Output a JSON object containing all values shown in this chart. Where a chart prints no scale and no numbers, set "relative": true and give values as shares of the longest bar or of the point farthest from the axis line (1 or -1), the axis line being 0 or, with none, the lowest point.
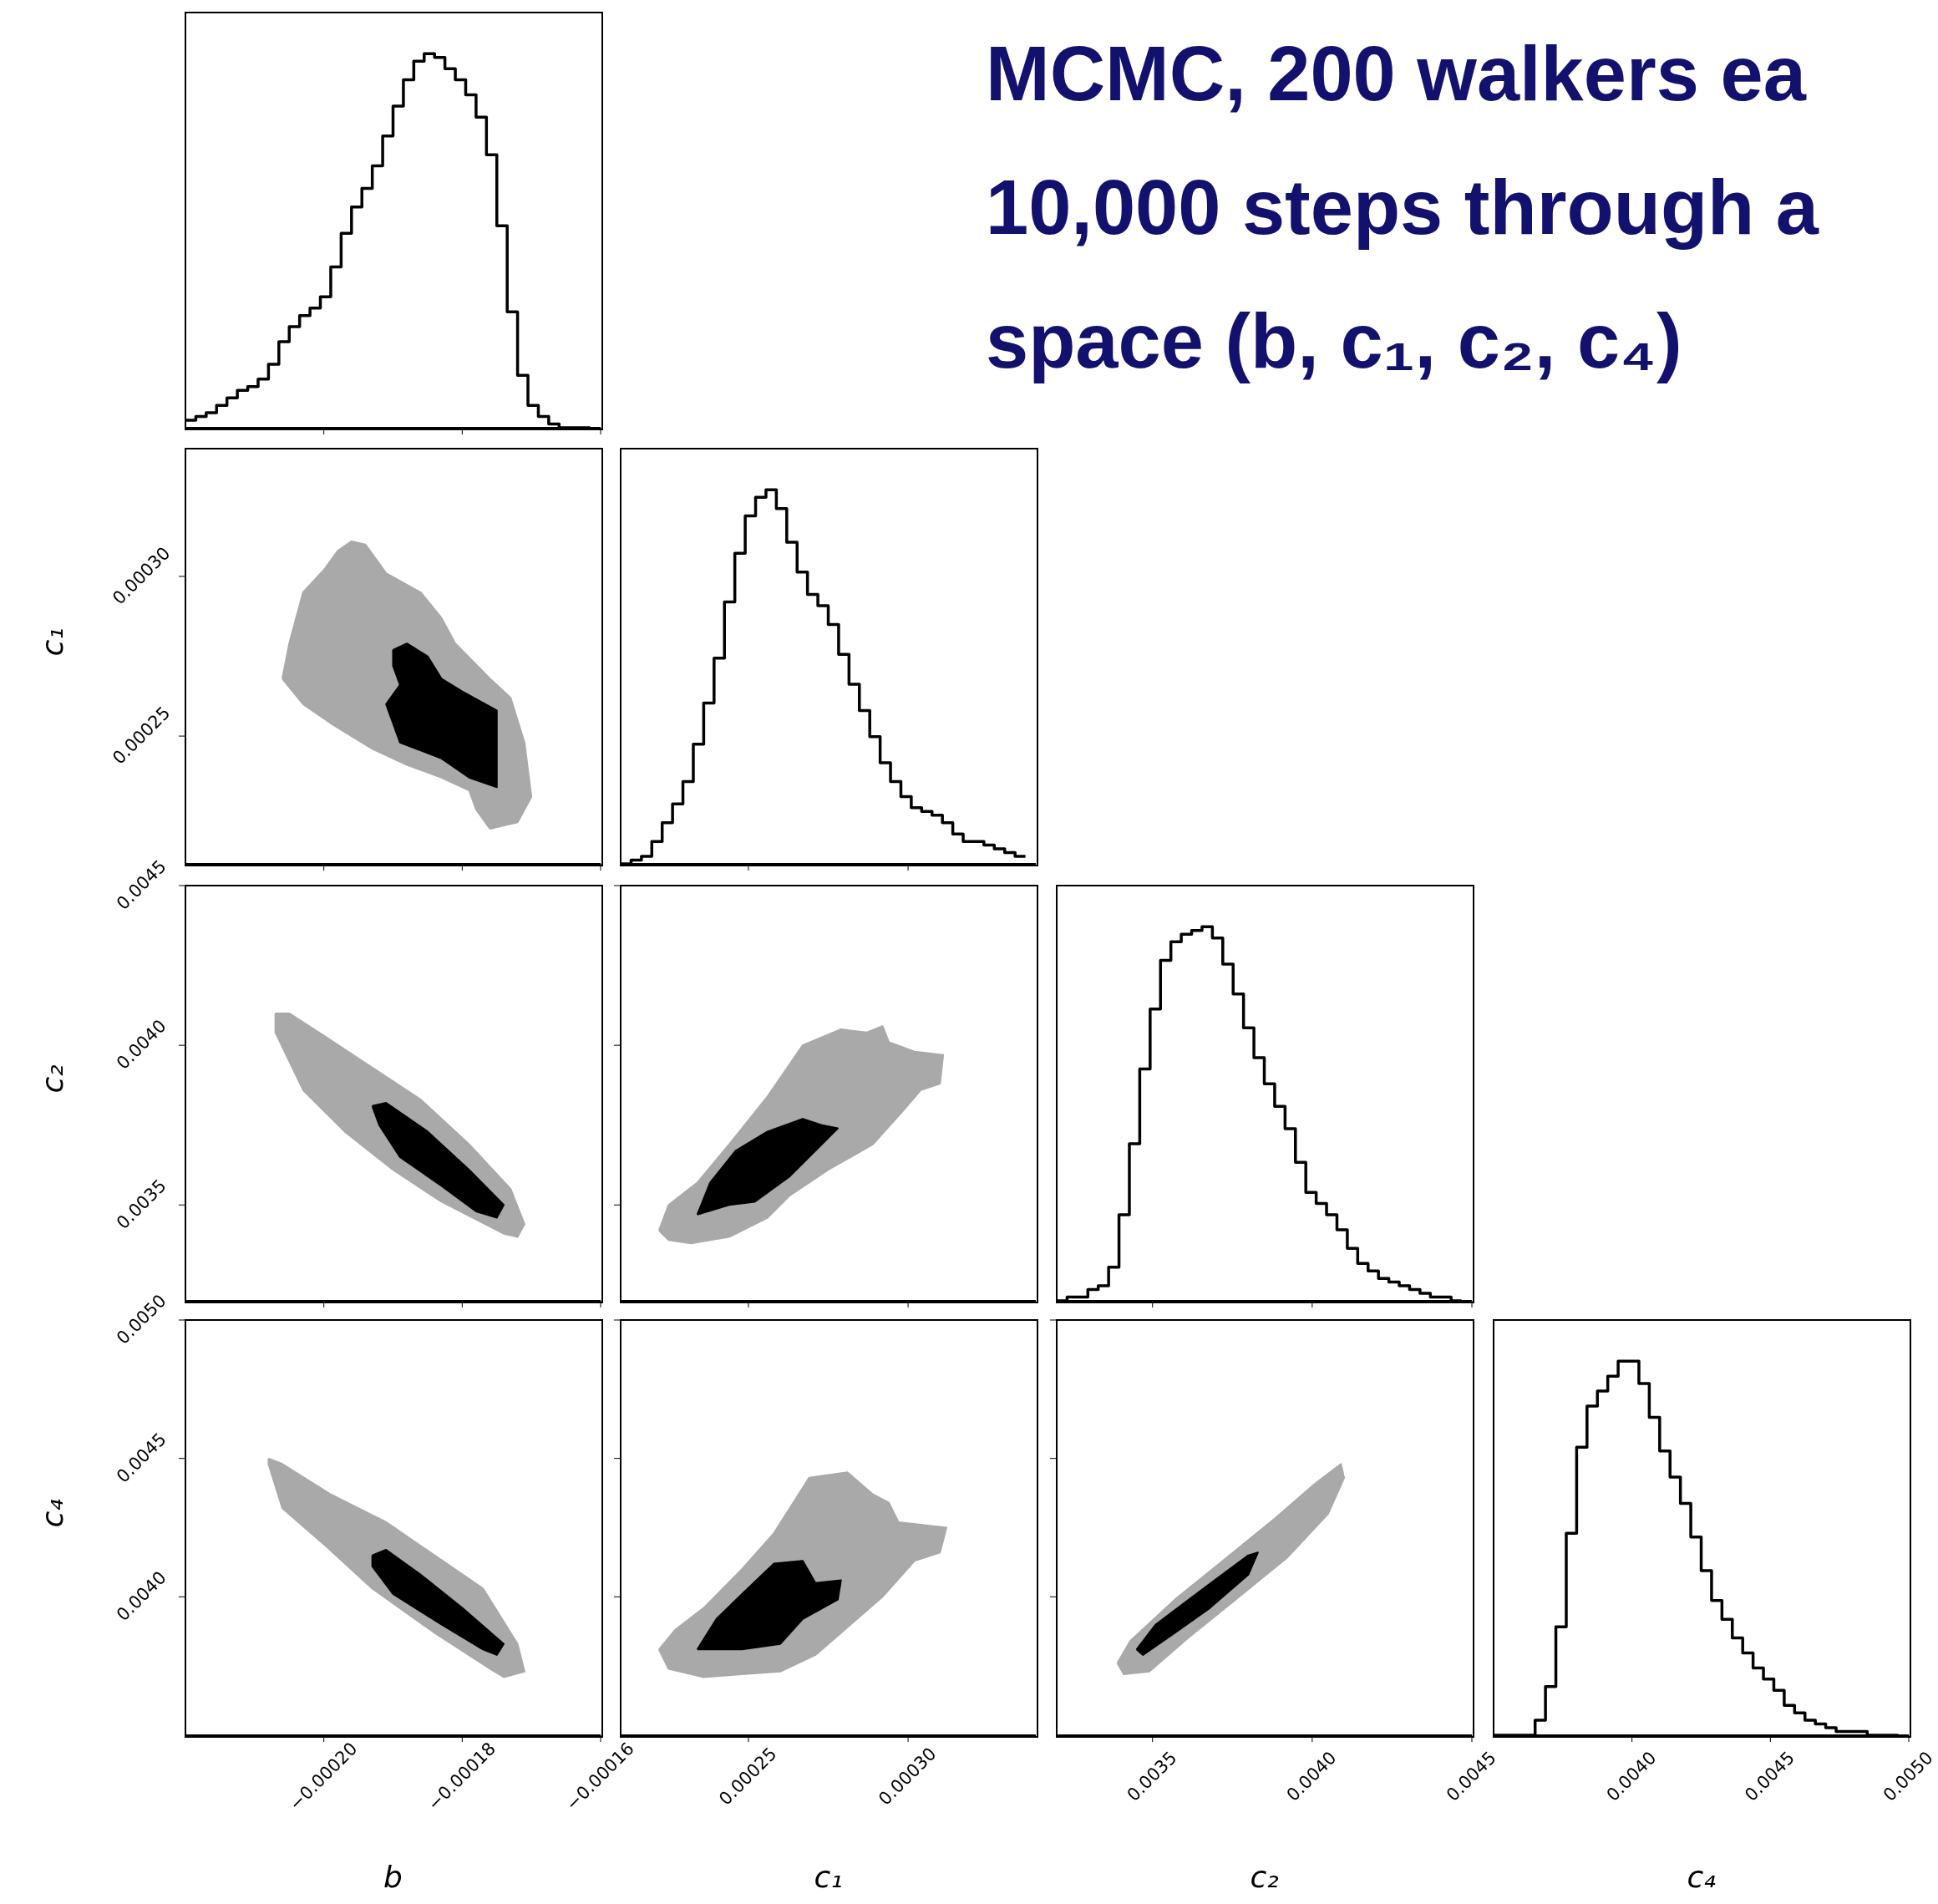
{
  "chart_data": [
    {
      "type": "step",
      "relative": true,
      "color": "#000000",
      "tick_labels": false,
      "xlim": [
        -0.00022,
        -0.00016
      ],
      "xticks": [
        {
          "value": -0.0002,
          "label": null
        },
        {
          "value": -0.00018,
          "label": null
        },
        {
          "value": -0.00016,
          "label": null
        }
      ],
      "x": [
        -0.00022,
        -0.0002185,
        -0.000217,
        -0.0002155,
        -0.000214,
        -0.0002125,
        -0.000211,
        -0.0002095,
        -0.000208,
        -0.0002065,
        -0.000205,
        -0.0002035,
        -0.000202,
        -0.0002005,
        -0.000199,
        -0.0001975,
        -0.000196,
        -0.0001945,
        -0.000193,
        -0.0001915,
        -0.00019,
        -0.0001885,
        -0.000187,
        -0.0001855,
        -0.000184,
        -0.0001825,
        -0.000181,
        -0.0001795,
        -0.000178,
        -0.0001765,
        -0.000175,
        -0.0001735,
        -0.000172,
        -0.0001705,
        -0.000169,
        -0.0001675,
        -0.000166,
        -0.0001645,
        -0.000163,
        -0.0001615
      ],
      "values": [
        0.02,
        0.03,
        0.04,
        0.06,
        0.08,
        0.1,
        0.11,
        0.13,
        0.17,
        0.23,
        0.27,
        0.3,
        0.32,
        0.35,
        0.43,
        0.52,
        0.59,
        0.64,
        0.7,
        0.78,
        0.86,
        0.93,
        0.98,
        1,
        0.99,
        0.96,
        0.93,
        0.89,
        0.83,
        0.73,
        0.54,
        0.31,
        0.14,
        0.06,
        0.03,
        0.01,
        0,
        0,
        0,
        0
      ]
    },
    {
      "type": "other",
      "title": "MCMC, 200 walkers ea\n10,000 steps through a\nspace (b, c₁, c₂, c₄)"
    },
    {
      "type": "area",
      "tick_labels": "y",
      "ylabel": "c₁",
      "xlim": [
        -0.00022,
        -0.00016
      ],
      "xticks": [
        {
          "value": -0.0002,
          "label": null
        },
        {
          "value": -0.00018,
          "label": null
        },
        {
          "value": -0.00016,
          "label": null
        }
      ],
      "ylim": [
        0.00021,
        0.00034
      ],
      "yticks": [
        {
          "value": 0.00025,
          "label": "0.00025"
        },
        {
          "value": 0.0003,
          "label": "0.00030"
        }
      ],
      "series": [
        {
          "color": "#a9a9a9",
          "x": [
            -0.000206,
            -0.000205,
            -0.000204,
            -0.000203,
            -0.0002,
            -0.000198,
            -0.000196,
            -0.000194,
            -0.000191,
            -0.000186,
            -0.000183,
            -0.000181,
            -0.000176,
            -0.000173,
            -0.000171,
            -0.00017,
            -0.000172,
            -0.000176,
            -0.000178,
            -0.000179,
            -0.000183,
            -0.000188,
            -0.000193,
            -0.000199,
            -0.000203,
            -0.000206
          ],
          "values": [
            0.000268,
            0.000279,
            0.000287,
            0.000295,
            0.000302,
            0.000308,
            0.000311,
            0.00031,
            0.000301,
            0.000295,
            0.000287,
            0.000279,
            0.000268,
            0.000262,
            0.000248,
            0.000231,
            0.000223,
            0.000221,
            0.000227,
            0.000233,
            0.000237,
            0.000241,
            0.000246,
            0.000254,
            0.00026,
            0.000268
          ]
        },
        {
          "color": "#000000",
          "x": [
            -0.00019,
            -0.000188,
            -0.000185,
            -0.000183,
            -0.00018,
            -0.000175,
            -0.000175,
            -0.000175,
            -0.000179,
            -0.000183,
            -0.000189,
            -0.000191,
            -0.000189,
            -0.00019,
            -0.00019
          ],
          "values": [
            0.000277,
            0.000279,
            0.000275,
            0.000268,
            0.000264,
            0.000258,
            0.000248,
            0.000234,
            0.000237,
            0.000243,
            0.000248,
            0.00026,
            0.000266,
            0.000272,
            0.000277
          ]
        }
      ]
    },
    {
      "type": "step",
      "relative": true,
      "color": "#000000",
      "tick_labels": false,
      "xlim": [
        0.00021,
        0.00034
      ],
      "xticks": [
        {
          "value": 0.00025,
          "label": null
        },
        {
          "value": 0.0003,
          "label": null
        }
      ],
      "x": [
        0.00021,
        0.00021325,
        0.0002165,
        0.00021975,
        0.000223,
        0.00022625,
        0.0002295,
        0.00023275,
        0.000236,
        0.00023925,
        0.0002425,
        0.00024575,
        0.000249,
        0.00025225,
        0.0002555,
        0.00025875,
        0.000262,
        0.00026525,
        0.0002685,
        0.00027175,
        0.000275,
        0.00027825,
        0.0002815,
        0.00028475,
        0.000288,
        0.00029125,
        0.0002945,
        0.00029775,
        0.000301,
        0.00030425,
        0.0003075,
        0.00031075,
        0.000314,
        0.00031725,
        0.0003205,
        0.00032375,
        0.000327,
        0.00033025,
        0.0003335,
        0.00033675
      ],
      "values": [
        0,
        0.01,
        0.02,
        0.06,
        0.11,
        0.16,
        0.22,
        0.32,
        0.43,
        0.55,
        0.7,
        0.83,
        0.93,
        0.98,
        1,
        0.95,
        0.86,
        0.78,
        0.72,
        0.69,
        0.64,
        0.56,
        0.48,
        0.41,
        0.34,
        0.27,
        0.22,
        0.18,
        0.15,
        0.14,
        0.13,
        0.11,
        0.08,
        0.06,
        0.06,
        0.05,
        0.04,
        0.03,
        0.02,
        0.02
      ]
    },
    {
      "type": "area",
      "tick_labels": "y",
      "ylabel": "c₂",
      "xlim": [
        -0.00022,
        -0.00016
      ],
      "xticks": [
        {
          "value": -0.0002,
          "label": null
        },
        {
          "value": -0.00018,
          "label": null
        },
        {
          "value": -0.00016,
          "label": null
        }
      ],
      "ylim": [
        0.0032,
        0.0045
      ],
      "yticks": [
        {
          "value": 0.0035,
          "label": "0.0035"
        },
        {
          "value": 0.004,
          "label": "0.0040"
        },
        {
          "value": 0.0045,
          "label": "0.0045"
        }
      ],
      "series": [
        {
          "color": "#a9a9a9",
          "x": [
            -0.000207,
            -0.000205,
            -0.0002,
            -0.000193,
            -0.000186,
            -0.000179,
            -0.000173,
            -0.000171,
            -0.000172,
            -0.000174,
            -0.000183,
            -0.00019,
            -0.000197,
            -0.000203,
            -0.000207,
            -0.000207
          ],
          "values": [
            0.0041,
            0.0041,
            0.00403,
            0.00393,
            0.00383,
            0.00369,
            0.00355,
            0.00344,
            0.0034,
            0.00341,
            0.00351,
            0.00361,
            0.00373,
            0.00386,
            0.00404,
            0.0041
          ]
        },
        {
          "color": "#000000",
          "x": [
            -0.000193,
            -0.000191,
            -0.000185,
            -0.000179,
            -0.000174,
            -0.000175,
            -0.000178,
            -0.000183,
            -0.000189,
            -0.000192,
            -0.000193
          ],
          "values": [
            0.00381,
            0.00382,
            0.00373,
            0.00361,
            0.0035,
            0.00346,
            0.00348,
            0.00356,
            0.00365,
            0.00375,
            0.00381
          ]
        }
      ]
    },
    {
      "type": "area",
      "tick_labels": false,
      "xlim": [
        0.00021,
        0.00034
      ],
      "xticks": [
        {
          "value": 0.00025,
          "label": null
        },
        {
          "value": 0.0003,
          "label": null
        }
      ],
      "ylim": [
        0.0032,
        0.0045
      ],
      "yticks": [
        {
          "value": 0.0035,
          "label": null
        },
        {
          "value": 0.004,
          "label": null
        },
        {
          "value": 0.0045,
          "label": null
        }
      ],
      "series": [
        {
          "color": "#a9a9a9",
          "x": [
            0.000222,
            0.000225,
            0.000234,
            0.000244,
            0.000256,
            0.000267,
            0.000279,
            0.000287,
            0.000292,
            0.000294,
            0.000302,
            0.000311,
            0.00031,
            0.000304,
            0.000298,
            0.000289,
            0.000275,
            0.000263,
            0.000256,
            0.000244,
            0.000232,
            0.000225,
            0.000222
          ],
          "values": [
            0.00342,
            0.0035,
            0.00357,
            0.00369,
            0.00384,
            0.004,
            0.00405,
            0.00404,
            0.00406,
            0.00401,
            0.00398,
            0.00397,
            0.00388,
            0.00386,
            0.00379,
            0.00369,
            0.00361,
            0.00353,
            0.00346,
            0.0034,
            0.00338,
            0.00339,
            0.00342
          ]
        },
        {
          "color": "#000000",
          "x": [
            0.000234,
            0.000238,
            0.000246,
            0.000256,
            0.000267,
            0.000273,
            0.000278,
            0.000271,
            0.000263,
            0.000252,
            0.000244,
            0.000234
          ],
          "values": [
            0.00347,
            0.00357,
            0.00367,
            0.00373,
            0.00377,
            0.00375,
            0.00374,
            0.00367,
            0.00359,
            0.00351,
            0.0035,
            0.00347
          ]
        }
      ]
    },
    {
      "type": "step",
      "relative": true,
      "color": "#000000",
      "tick_labels": false,
      "xlim": [
        0.0032,
        0.0045
      ],
      "xticks": [
        {
          "value": 0.0035,
          "label": null
        },
        {
          "value": 0.004,
          "label": null
        },
        {
          "value": 0.0045,
          "label": null
        }
      ],
      "x": [
        0.0032,
        0.0032325,
        0.003265,
        0.0032975,
        0.00333,
        0.0033625,
        0.003395,
        0.0034275,
        0.00346,
        0.0034925,
        0.003525,
        0.0035575,
        0.00359,
        0.0036225,
        0.003655,
        0.0036875,
        0.00372,
        0.0037525,
        0.003785,
        0.0038175,
        0.00385,
        0.0038825,
        0.003915,
        0.0039475,
        0.00398,
        0.0040125,
        0.004045,
        0.0040775,
        0.00411,
        0.0041425,
        0.004175,
        0.0042075,
        0.00424,
        0.0042725,
        0.004305,
        0.0043375,
        0.00437,
        0.0044025,
        0.004435,
        0.0044675
      ],
      "values": [
        0,
        0.01,
        0.01,
        0.03,
        0.04,
        0.09,
        0.23,
        0.42,
        0.62,
        0.78,
        0.91,
        0.96,
        0.98,
        0.99,
        1,
        0.97,
        0.9,
        0.82,
        0.73,
        0.65,
        0.58,
        0.52,
        0.46,
        0.37,
        0.29,
        0.26,
        0.23,
        0.19,
        0.14,
        0.1,
        0.08,
        0.06,
        0.05,
        0.04,
        0.03,
        0.02,
        0.01,
        0.01,
        0,
        0
      ]
    },
    {
      "type": "area",
      "xlabel": "b",
      "ylabel": "c₄",
      "xlim": [
        -0.00022,
        -0.00016
      ],
      "xticks": [
        {
          "value": -0.0002,
          "label": "−0.00020"
        },
        {
          "value": -0.00018,
          "label": "−0.00018"
        },
        {
          "value": -0.00016,
          "label": "−0.00016"
        }
      ],
      "ylim": [
        0.0035,
        0.005
      ],
      "yticks": [
        {
          "value": 0.004,
          "label": "0.0040"
        },
        {
          "value": 0.0045,
          "label": "0.0045"
        },
        {
          "value": 0.005,
          "label": "0.0050"
        }
      ],
      "series": [
        {
          "color": "#a9a9a9",
          "x": [
            -0.000208,
            -0.000206,
            -0.000199,
            -0.000191,
            -0.000184,
            -0.000177,
            -0.000172,
            -0.000171,
            -0.000174,
            -0.000176,
            -0.000184,
            -0.000193,
            -0.0002,
            -0.000206,
            -0.000208,
            -0.000208
          ],
          "values": [
            0.0045,
            0.00448,
            0.00437,
            0.00427,
            0.00415,
            0.00403,
            0.00383,
            0.00373,
            0.00371,
            0.00374,
            0.00387,
            0.00403,
            0.00419,
            0.00432,
            0.00448,
            0.0045
          ]
        },
        {
          "color": "#000000",
          "x": [
            -0.000193,
            -0.000191,
            -0.000186,
            -0.00018,
            -0.000174,
            -0.000175,
            -0.000177,
            -0.000183,
            -0.00019,
            -0.000193,
            -0.000193
          ],
          "values": [
            0.00415,
            0.00417,
            0.00408,
            0.00396,
            0.00383,
            0.00379,
            0.00381,
            0.0039,
            0.00401,
            0.00411,
            0.00415
          ]
        }
      ]
    },
    {
      "type": "area",
      "tick_labels": "x",
      "xlabel": "c₁",
      "xlim": [
        0.00021,
        0.00034
      ],
      "xticks": [
        {
          "value": 0.00025,
          "label": "0.00025"
        },
        {
          "value": 0.0003,
          "label": "0.00030"
        }
      ],
      "ylim": [
        0.0035,
        0.005
      ],
      "yticks": [
        {
          "value": 0.004,
          "label": null
        },
        {
          "value": 0.0045,
          "label": null
        },
        {
          "value": 0.005,
          "label": null
        }
      ],
      "series": [
        {
          "color": "#a9a9a9",
          "x": [
            0.000222,
            0.000227,
            0.000236,
            0.000248,
            0.000258,
            0.000269,
            0.000281,
            0.000289,
            0.000294,
            0.000297,
            0.000312,
            0.00031,
            0.000302,
            0.000292,
            0.000279,
            0.000271,
            0.00026,
            0.000248,
            0.000236,
            0.000225,
            0.000222
          ],
          "values": [
            0.00381,
            0.00388,
            0.00396,
            0.0041,
            0.00423,
            0.00443,
            0.00445,
            0.00437,
            0.00434,
            0.00427,
            0.00425,
            0.00416,
            0.00413,
            0.004,
            0.00387,
            0.00379,
            0.00373,
            0.00372,
            0.00371,
            0.00374,
            0.00381
          ]
        },
        {
          "color": "#000000",
          "x": [
            0.000234,
            0.00024,
            0.000248,
            0.000258,
            0.000267,
            0.000271,
            0.000279,
            0.000278,
            0.000267,
            0.00026,
            0.000248,
            0.000234
          ],
          "values": [
            0.00381,
            0.00392,
            0.00401,
            0.00412,
            0.00413,
            0.00405,
            0.00406,
            0.00399,
            0.00392,
            0.00383,
            0.00381,
            0.00381
          ]
        }
      ]
    },
    {
      "type": "area",
      "tick_labels": "x",
      "xlabel": "c₂",
      "xlim": [
        0.0032,
        0.0045
      ],
      "xticks": [
        {
          "value": 0.0035,
          "label": "0.0035"
        },
        {
          "value": 0.004,
          "label": "0.0040"
        },
        {
          "value": 0.0045,
          "label": "0.0045"
        }
      ],
      "ylim": [
        0.0035,
        0.005
      ],
      "yticks": [
        {
          "value": 0.004,
          "label": null
        },
        {
          "value": 0.0045,
          "label": null
        },
        {
          "value": 0.005,
          "label": null
        }
      ],
      "series": [
        {
          "color": "#a9a9a9",
          "x": [
            0.00339,
            0.00343,
            0.00357,
            0.00372,
            0.00388,
            0.00401,
            0.00409,
            0.0041,
            0.00405,
            0.00392,
            0.00376,
            0.00361,
            0.00349,
            0.00341,
            0.00339
          ],
          "values": [
            0.00376,
            0.00384,
            0.00399,
            0.00413,
            0.00428,
            0.00441,
            0.00448,
            0.00443,
            0.0043,
            0.00414,
            0.00399,
            0.00385,
            0.00373,
            0.00372,
            0.00376
          ]
        },
        {
          "color": "#000000",
          "x": [
            0.00345,
            0.00351,
            0.00366,
            0.0038,
            0.00383,
            0.0038,
            0.00368,
            0.00357,
            0.00347,
            0.00345
          ],
          "values": [
            0.00381,
            0.0039,
            0.00403,
            0.00415,
            0.00416,
            0.00408,
            0.00396,
            0.00387,
            0.00379,
            0.00381
          ]
        }
      ]
    },
    {
      "type": "step",
      "relative": true,
      "color": "#000000",
      "tick_labels": "x",
      "xlabel": "c₄",
      "xlim": [
        0.0035,
        0.005
      ],
      "xticks": [
        {
          "value": 0.004,
          "label": "0.0040"
        },
        {
          "value": 0.0045,
          "label": "0.0045"
        },
        {
          "value": 0.005,
          "label": "0.0050"
        }
      ],
      "x": [
        0.0035,
        0.0035375,
        0.003575,
        0.0036125,
        0.00365,
        0.0036875,
        0.003725,
        0.0037625,
        0.0038,
        0.0038375,
        0.003875,
        0.0039125,
        0.00395,
        0.0039875,
        0.004025,
        0.0040625,
        0.0041,
        0.0041375,
        0.004175,
        0.0042125,
        0.00425,
        0.0042875,
        0.004325,
        0.0043625,
        0.0044,
        0.0044375,
        0.004475,
        0.0045125,
        0.00455,
        0.0045875,
        0.004625,
        0.0046625,
        0.0047,
        0.0047375,
        0.004775,
        0.0048125,
        0.00485,
        0.0048875,
        0.004925,
        0.0049625
      ],
      "values": [
        0,
        0,
        0,
        0,
        0.04,
        0.13,
        0.29,
        0.54,
        0.77,
        0.88,
        0.92,
        0.96,
        1,
        1,
        0.94,
        0.85,
        0.76,
        0.69,
        0.62,
        0.53,
        0.44,
        0.36,
        0.31,
        0.26,
        0.22,
        0.18,
        0.15,
        0.12,
        0.08,
        0.06,
        0.04,
        0.03,
        0.02,
        0.01,
        0.01,
        0.01,
        0,
        0,
        0,
        0
      ]
    }
  ]
}
